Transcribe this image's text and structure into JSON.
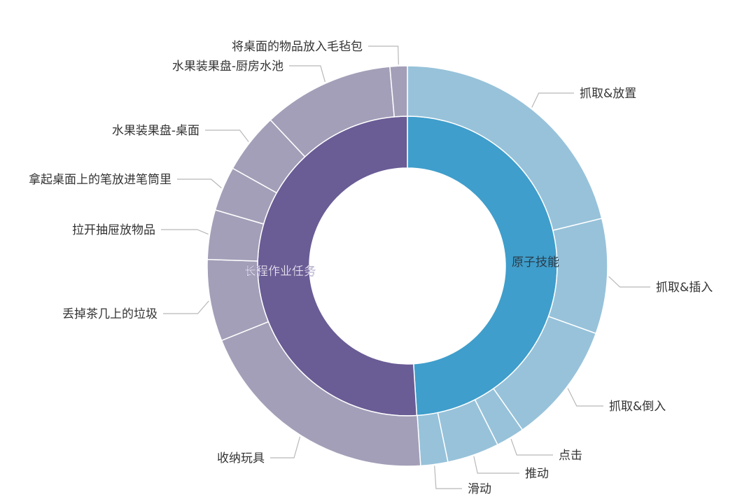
{
  "chart_data": {
    "type": "sunburst",
    "title": "",
    "colors": {
      "inner_blue": "#3f9ecb",
      "outer_blue": "#97c2da",
      "inner_purple": "#6a5c95",
      "outer_purple": "#a49fb8"
    },
    "inner": [
      {
        "name": "原子技能",
        "value": 49.0
      },
      {
        "name": "长程作业任务",
        "value": 51.0
      }
    ],
    "outer": [
      {
        "name": "抓取&放置",
        "parent": "原子技能",
        "value": 21.2
      },
      {
        "name": "抓取&插入",
        "parent": "原子技能",
        "value": 9.3
      },
      {
        "name": "抓取&倒入",
        "parent": "原子技能",
        "value": 9.8
      },
      {
        "name": "点击",
        "parent": "原子技能",
        "value": 2.3
      },
      {
        "name": "推动",
        "parent": "原子技能",
        "value": 4.2
      },
      {
        "name": "滑动",
        "parent": "原子技能",
        "value": 2.2
      },
      {
        "name": "收纳玩具",
        "parent": "长程作业任务",
        "value": 20.0
      },
      {
        "name": "丢掉茶几上的垃圾",
        "parent": "长程作业任务",
        "value": 6.6
      },
      {
        "name": "拉开抽屉放物品",
        "parent": "长程作业任务",
        "value": 4.0
      },
      {
        "name": "拿起桌面上的笔放进笔筒里",
        "parent": "长程作业任务",
        "value": 3.6
      },
      {
        "name": "水果装果盘-桌面",
        "parent": "长程作业任务",
        "value": 4.9
      },
      {
        "name": "水果装果盘-厨房水池",
        "parent": "长程作业任务",
        "value": 10.6
      },
      {
        "name": "将桌面的物品放入毛毡包",
        "parent": "长程作业任务",
        "value": 1.4
      }
    ]
  }
}
